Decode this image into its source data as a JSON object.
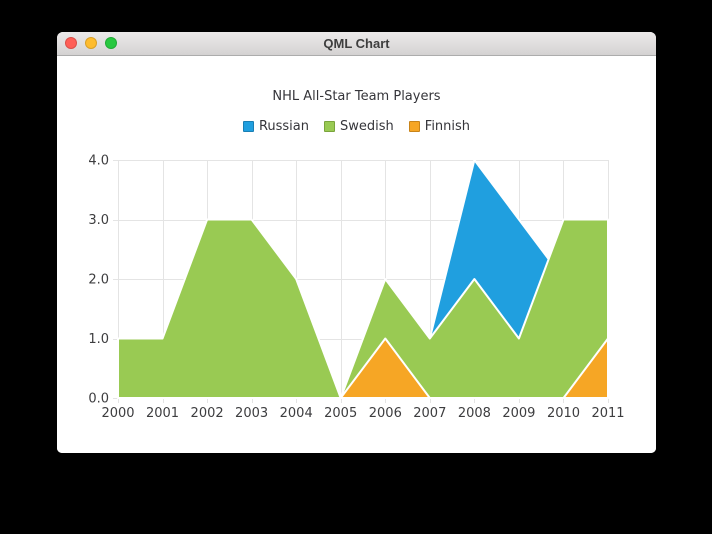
{
  "window": {
    "title": "QML Chart",
    "buttons": [
      {
        "name": "close",
        "color": "#ff5f57"
      },
      {
        "name": "minimize",
        "color": "#febc2e"
      },
      {
        "name": "zoom",
        "color": "#28c840"
      }
    ]
  },
  "chart_data": {
    "type": "area",
    "title": "NHL All-Star Team Players",
    "x_range": [
      2000,
      2011
    ],
    "y_range": [
      0,
      4
    ],
    "grid": true,
    "legend_position": "top",
    "x_ticks": [
      {
        "label": "2000",
        "value": 2000
      },
      {
        "label": "2001",
        "value": 2001
      },
      {
        "label": "2002",
        "value": 2002
      },
      {
        "label": "2003",
        "value": 2003
      },
      {
        "label": "2004",
        "value": 2004
      },
      {
        "label": "2005",
        "value": 2005
      },
      {
        "label": "2006",
        "value": 2006
      },
      {
        "label": "2007",
        "value": 2007
      },
      {
        "label": "2008",
        "value": 2008
      },
      {
        "label": "2009",
        "value": 2009
      },
      {
        "label": "2010",
        "value": 2010
      },
      {
        "label": "2011",
        "value": 2011
      }
    ],
    "y_ticks": [
      {
        "label": "0.0",
        "value": 0
      },
      {
        "label": "1.0",
        "value": 1
      },
      {
        "label": "2.0",
        "value": 2
      },
      {
        "label": "3.0",
        "value": 3
      },
      {
        "label": "4.0",
        "value": 4
      }
    ],
    "series": [
      {
        "name": "Russian",
        "color": "#209fdf",
        "marker_border": "#1a7fb4",
        "note": "partially occluded by Swedish series; visible portion only",
        "points": [
          [
            2007,
            1
          ],
          [
            2008,
            4
          ],
          [
            2009,
            3
          ],
          [
            2010,
            2
          ]
        ]
      },
      {
        "name": "Swedish",
        "color": "#99ca53",
        "marker_border": "#7aa43c",
        "points": [
          [
            2000,
            1
          ],
          [
            2001,
            1
          ],
          [
            2002,
            3
          ],
          [
            2003,
            3
          ],
          [
            2004,
            2
          ],
          [
            2005,
            0
          ],
          [
            2006,
            2
          ],
          [
            2007,
            1
          ],
          [
            2008,
            2
          ],
          [
            2009,
            1
          ],
          [
            2010,
            3
          ],
          [
            2011,
            3
          ]
        ]
      },
      {
        "name": "Finnish",
        "color": "#f6a625",
        "marker_border": "#c8841a",
        "points": [
          [
            2000,
            0
          ],
          [
            2001,
            0
          ],
          [
            2002,
            0
          ],
          [
            2003,
            0
          ],
          [
            2004,
            0
          ],
          [
            2005,
            0
          ],
          [
            2006,
            1
          ],
          [
            2007,
            0
          ],
          [
            2008,
            0
          ],
          [
            2009,
            0
          ],
          [
            2010,
            0
          ],
          [
            2011,
            1
          ]
        ]
      }
    ],
    "colors": {
      "grid": "#e4e4e4",
      "area_stroke": "#ffffff",
      "axis_label": "#3d3d3f"
    }
  }
}
